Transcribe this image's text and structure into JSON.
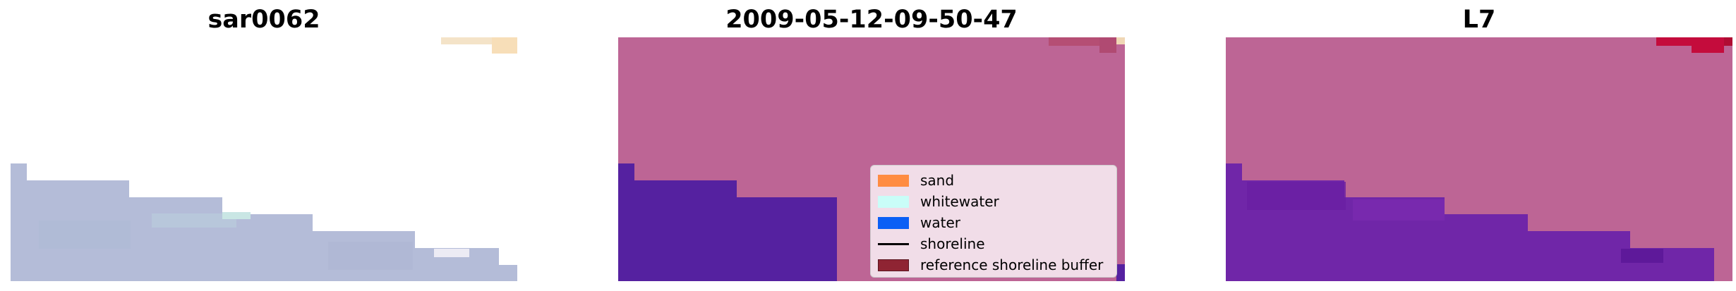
{
  "panels": [
    {
      "title": "sar0062"
    },
    {
      "title": "2009-05-12-09-50-47"
    },
    {
      "title": "L7"
    }
  ],
  "legend": {
    "items": [
      {
        "label": "sand",
        "color": "#ff8c42"
      },
      {
        "label": "whitewater",
        "color": "#c9fdf8"
      },
      {
        "label": "water",
        "color": "#0b5ff5"
      },
      {
        "label": "shoreline",
        "color": "#000000"
      },
      {
        "label": "reference shoreline buffer",
        "color": "#8f2433"
      }
    ]
  },
  "colors": {
    "land_overlay": "#bd6595",
    "water_overlay": "#5521a0",
    "sar_water": "#b4bcd8",
    "sar_sand": "#f3e1c4",
    "l7_water": "#7026a8",
    "l7_buffer": "#c40c3c"
  }
}
